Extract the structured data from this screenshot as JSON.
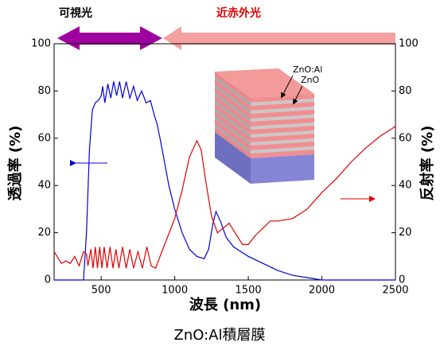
{
  "chart_data": {
    "type": "line",
    "title": "ZnO:Al積層膜",
    "xlabel": "波長 (nm)",
    "ylabel": "透過率 (%)",
    "y2label": "反射率 (%)",
    "annotations": [
      "可視光",
      "近赤外光",
      "ZnO:Al",
      "ZnO"
    ],
    "xlim": [
      180,
      2500
    ],
    "xticks": [
      500,
      1000,
      1500,
      2000,
      2500
    ],
    "ylim": [
      0,
      100
    ],
    "yticks": [
      0,
      20,
      40,
      60,
      80,
      100
    ],
    "y2lim": [
      0,
      100
    ],
    "y2ticks": [
      0,
      20,
      40,
      60,
      80,
      100
    ],
    "series": [
      {
        "color": "#0000dd",
        "x": [
          180,
          350,
          380,
          400,
          420,
          440,
          460,
          480,
          500,
          510,
          525,
          545,
          565,
          585,
          605,
          625,
          645,
          670,
          695,
          720,
          745,
          775,
          805,
          835,
          860,
          880,
          900,
          930,
          960,
          1000,
          1050,
          1100,
          1150,
          1200,
          1230,
          1260,
          1280,
          1310,
          1350,
          1400,
          1450,
          1500,
          1600,
          1700,
          1800,
          1900,
          2000,
          2500
        ],
        "values": [
          0,
          0,
          0,
          20,
          55,
          72,
          75,
          76,
          78,
          82,
          75,
          83,
          77,
          84,
          78,
          84,
          77,
          84,
          77,
          82,
          76,
          80,
          75,
          76,
          70,
          66,
          60,
          50,
          40,
          30,
          20,
          13,
          10,
          9,
          13,
          24,
          29,
          25,
          18,
          14,
          12,
          10,
          7,
          4,
          2,
          1,
          0,
          0
        ]
      },
      {
        "color": "#e00000",
        "axis": "y2",
        "x": [
          180,
          200,
          230,
          260,
          290,
          320,
          350,
          380,
          400,
          410,
          430,
          445,
          460,
          475,
          490,
          505,
          520,
          540,
          560,
          580,
          600,
          620,
          645,
          670,
          695,
          720,
          750,
          780,
          810,
          840,
          870,
          900,
          950,
          1000,
          1050,
          1100,
          1150,
          1180,
          1210,
          1250,
          1290,
          1330,
          1370,
          1410,
          1460,
          1500,
          1550,
          1600,
          1650,
          1700,
          1800,
          1900,
          2000,
          2100,
          2200,
          2300,
          2400,
          2450,
          2500
        ],
        "values": [
          12,
          10,
          7,
          8,
          7,
          10,
          6,
          12,
          11,
          6,
          13,
          5,
          14,
          5,
          14,
          5,
          14,
          5,
          14,
          5,
          13,
          5,
          14,
          5,
          13,
          5,
          12,
          5,
          14,
          6,
          5,
          10,
          18,
          26,
          38,
          52,
          59,
          55,
          42,
          27,
          20,
          22,
          24,
          20,
          15,
          15,
          19,
          22,
          25,
          25,
          26,
          30,
          37,
          43,
          50,
          56,
          61,
          63,
          65
        ]
      }
    ]
  }
}
